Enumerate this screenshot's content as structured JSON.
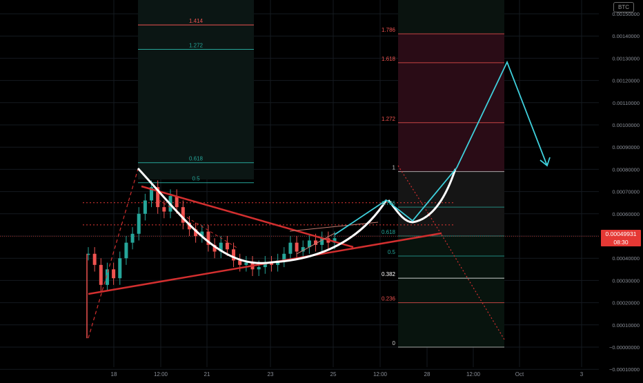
{
  "chart_data": {
    "type": "line",
    "symbol_currency": "BTC",
    "price_axis": {
      "labels": [
        "0.00150000",
        "0.00140000",
        "0.00130000",
        "0.00120000",
        "0.00110000",
        "0.00100000",
        "0.00090000",
        "0.00080000",
        "0.00070000",
        "0.00060000",
        "0.00050000",
        "0.00040000",
        "0.00030000",
        "0.00020000",
        "0.00010000",
        "−0.00000000",
        "−0.00010000"
      ],
      "values": [
        0.0015,
        0.0014,
        0.0013,
        0.0012,
        0.0011,
        0.001,
        0.0009,
        0.0008,
        0.0007,
        0.0006,
        0.0005,
        0.0004,
        0.0003,
        0.0002,
        0.0001,
        0,
        -0.0001
      ]
    },
    "time_axis": {
      "labels": [
        "18",
        "12:00",
        "21",
        "23",
        "25",
        "12:00",
        "28",
        "12:00",
        "Oct",
        "3"
      ]
    },
    "current_price": {
      "value": "0.00049931",
      "countdown": "08:30",
      "color": "#e53935"
    },
    "candles": {
      "up_color": "#26a69a",
      "down_color": "#ef5350",
      "close_path": [
        [
          0,
          0.00042
        ],
        [
          1,
          0.00037
        ],
        [
          2,
          0.00028
        ],
        [
          3,
          0.00035
        ],
        [
          4,
          0.00031
        ],
        [
          5,
          0.0004
        ],
        [
          6,
          0.00047
        ],
        [
          7,
          0.00051
        ],
        [
          8,
          0.0006
        ],
        [
          9,
          0.00066
        ],
        [
          10,
          0.00072
        ],
        [
          11,
          0.00063
        ],
        [
          12,
          0.00061
        ],
        [
          13,
          0.00068
        ],
        [
          14,
          0.00063
        ],
        [
          15,
          0.00056
        ],
        [
          16,
          0.00053
        ],
        [
          17,
          0.0005
        ],
        [
          18,
          0.00052
        ],
        [
          19,
          0.00046
        ],
        [
          20,
          0.00043
        ],
        [
          21,
          0.00047
        ],
        [
          22,
          0.00044
        ],
        [
          23,
          0.00039
        ],
        [
          24,
          0.00037
        ],
        [
          25,
          0.00038
        ],
        [
          26,
          0.00035
        ],
        [
          27,
          0.00036
        ],
        [
          28,
          0.00038
        ],
        [
          29,
          0.00037
        ],
        [
          30,
          0.00039
        ],
        [
          31,
          0.00042
        ],
        [
          32,
          0.00047
        ],
        [
          33,
          0.00043
        ],
        [
          34,
          0.00045
        ],
        [
          35,
          0.00048
        ],
        [
          36,
          0.00046
        ],
        [
          37,
          0.00049
        ],
        [
          38,
          0.00047
        ],
        [
          39,
          0.00049
        ]
      ]
    },
    "fib_left": {
      "color": "#26a69a",
      "levels": [
        {
          "label": "1.414",
          "value": 0.00145,
          "color": "#ef5350"
        },
        {
          "label": "1.272",
          "value": 0.00134,
          "color": "#26a69a"
        },
        {
          "label": "0.618",
          "value": 0.00083,
          "color": "#26a69a"
        },
        {
          "label": "0.5",
          "value": 0.00074,
          "color": "#26a69a"
        }
      ]
    },
    "fib_right": {
      "levels": [
        {
          "label": "1.786",
          "value": 0.00141,
          "color": "#ef5350"
        },
        {
          "label": "1.618",
          "value": 0.00128,
          "color": "#ef5350"
        },
        {
          "label": "1.272",
          "value": 0.00101,
          "color": "#ef5350"
        },
        {
          "label": "1",
          "value": 0.00079,
          "color": "#cccccc"
        },
        {
          "label": "0.786",
          "value": 0.00063,
          "color": "#26a69a"
        },
        {
          "label": "0.618",
          "value": 0.0005,
          "color": "#26a69a"
        },
        {
          "label": "0.5",
          "value": 0.00041,
          "color": "#26a69a"
        },
        {
          "label": "0.382",
          "value": 0.00031,
          "color": "#ffffff"
        },
        {
          "label": "0.236",
          "value": 0.0002,
          "color": "#ef5350"
        },
        {
          "label": "0",
          "value": 0.0,
          "color": "#cccccc"
        }
      ]
    },
    "horizontal_levels": [
      0.00065,
      0.00055
    ],
    "projection_color": "#3fd0dc",
    "pattern_line_color": "#d32f2f",
    "cup_color": "#ffffff",
    "grid": true
  }
}
